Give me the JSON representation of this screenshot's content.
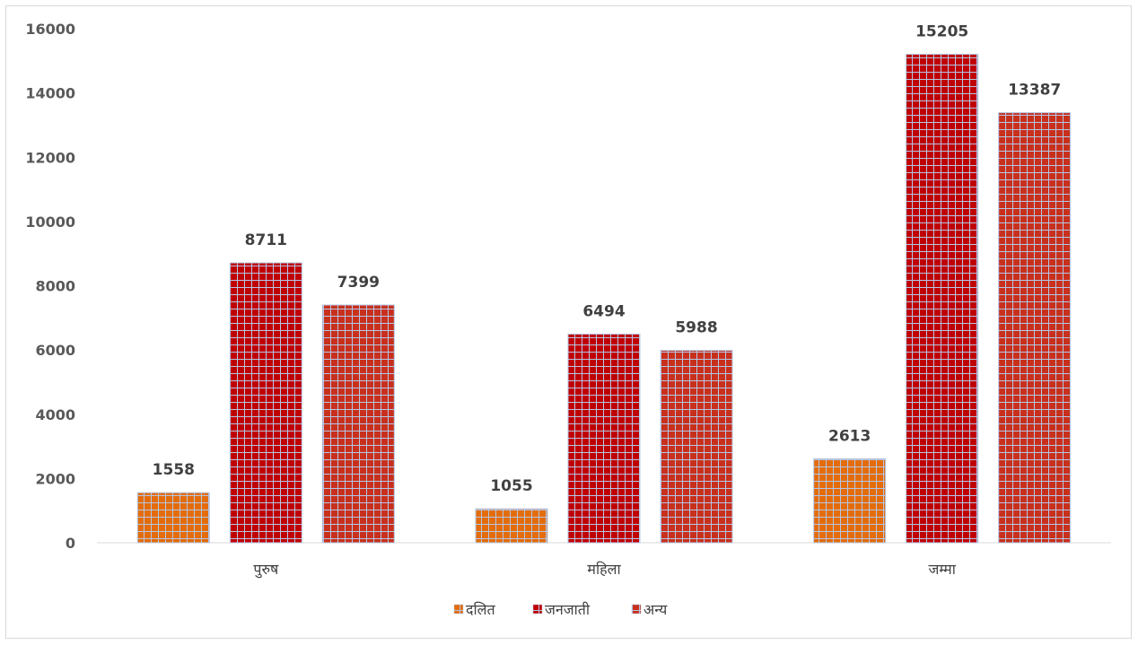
{
  "chart_data": {
    "type": "bar",
    "title": "",
    "xlabel": "",
    "ylabel": "",
    "categories": [
      "पुरुष",
      "महिला",
      "जम्मा"
    ],
    "series": [
      {
        "name": "दलित",
        "values": [
          1558,
          1055,
          2613
        ],
        "color": "#e46c0a"
      },
      {
        "name": "जनजाती",
        "values": [
          8711,
          6494,
          15205
        ],
        "color": "#c00000"
      },
      {
        "name": "अन्य",
        "values": [
          7399,
          5988,
          13387
        ],
        "color": "#c9301c"
      }
    ],
    "ylim": [
      0,
      16000
    ],
    "yticks": [
      0,
      2000,
      4000,
      6000,
      8000,
      10000,
      12000,
      14000,
      16000
    ],
    "grid": false,
    "legend_position": "bottom",
    "pattern": "grid",
    "pattern_color": "#b4c7e7"
  }
}
